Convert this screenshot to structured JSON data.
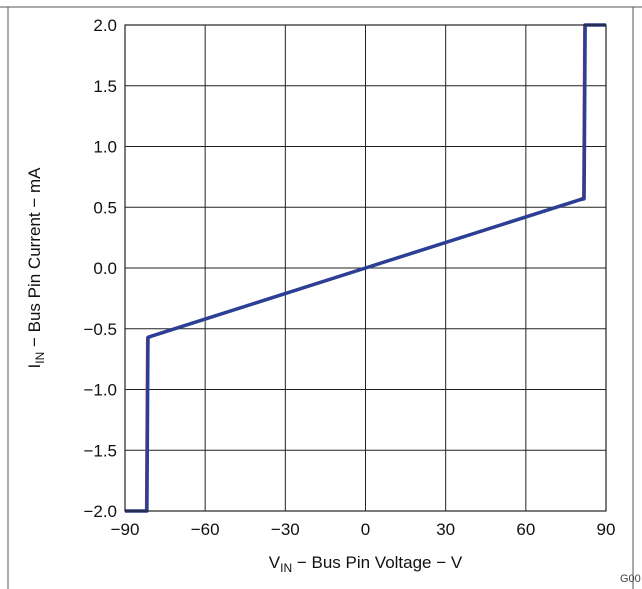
{
  "chart_data": {
    "type": "line",
    "title": "",
    "xlabel": "V_IN − Bus Pin Voltage − V",
    "ylabel": "I_IN − Bus Pin Current − mA",
    "xlabel_parts": {
      "pre": "V",
      "sub": "IN",
      "post": " − Bus Pin Voltage − V"
    },
    "ylabel_parts": {
      "pre": "I",
      "sub": "IN",
      "post": " − Bus Pin Current − mA"
    },
    "xlim": [
      -90,
      90
    ],
    "ylim": [
      -2.0,
      2.0
    ],
    "x_ticks": [
      -90,
      -60,
      -30,
      0,
      30,
      60,
      90
    ],
    "x_tick_labels": [
      "−90",
      "−60",
      "−30",
      "0",
      "30",
      "60",
      "90"
    ],
    "y_ticks": [
      2.0,
      1.5,
      1.0,
      0.5,
      0.0,
      -0.5,
      -1.0,
      -1.5,
      -2.0
    ],
    "y_tick_labels": [
      "2.0",
      "1.5",
      "1.0",
      "0.5",
      "0.0",
      "−0.5",
      "−1.0",
      "−1.5",
      "−2.0"
    ],
    "grid": true,
    "figure_code": "G00",
    "series": [
      {
        "color": "#d93a3a",
        "x": [
          -90,
          -82,
          -81.6,
          -80,
          0,
          80,
          81.6,
          82,
          90
        ],
        "y": [
          -2.0,
          -2.0,
          -0.58,
          -0.56,
          0.0,
          0.56,
          0.58,
          2.0,
          2.0
        ]
      },
      {
        "color": "#2b3f95",
        "x": [
          -90,
          -81.8,
          -81.4,
          -80,
          0,
          80,
          81.8,
          82.2,
          90
        ],
        "y": [
          -2.0,
          -2.0,
          -0.57,
          -0.56,
          0.0,
          0.56,
          0.57,
          2.0,
          2.0
        ]
      }
    ]
  }
}
